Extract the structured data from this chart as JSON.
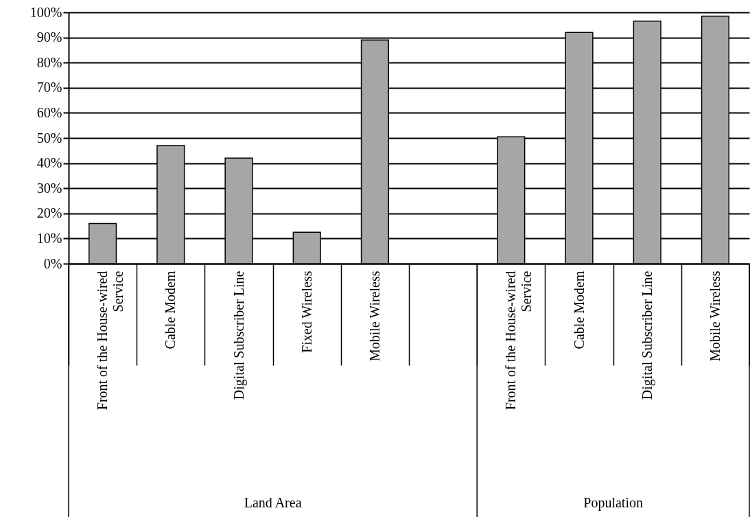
{
  "chart_data": {
    "type": "bar",
    "categories": [
      "Front of the House-wired Service",
      "Cable Modem",
      "Digital Subscriber Line",
      "Fixed Wireless",
      "Mobile Wireless",
      null,
      "Front of the House-wired Service",
      "Cable Modem",
      "Digital Subscriber Line",
      "Mobile Wireless"
    ],
    "values": [
      16,
      47,
      42,
      12.5,
      89,
      null,
      50.5,
      92,
      96.5,
      98.5
    ],
    "color": "#a6a6a6",
    "ylim": [
      0,
      100
    ],
    "yticks": [
      {
        "value": 0,
        "label": "0%"
      },
      {
        "value": 10,
        "label": "10%"
      },
      {
        "value": 20,
        "label": "20%"
      },
      {
        "value": 30,
        "label": "30%"
      },
      {
        "value": 40,
        "label": "40%"
      },
      {
        "value": 50,
        "label": "50%"
      },
      {
        "value": 60,
        "label": "60%"
      },
      {
        "value": 70,
        "label": "70%"
      },
      {
        "value": 80,
        "label": "80%"
      },
      {
        "value": 90,
        "label": "90%"
      },
      {
        "value": 100,
        "label": "100%"
      }
    ],
    "grid": "y",
    "annotations": [
      "Land Area",
      "Population"
    ]
  }
}
